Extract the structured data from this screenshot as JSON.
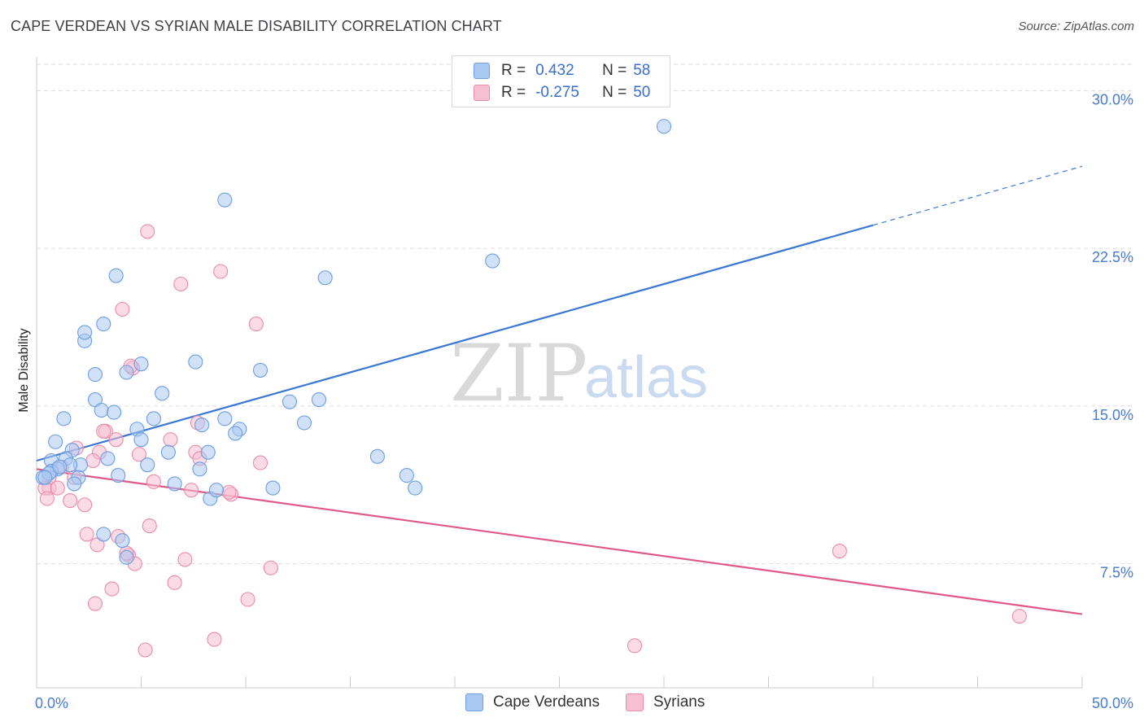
{
  "header": {
    "title": "CAPE VERDEAN VS SYRIAN MALE DISABILITY CORRELATION CHART",
    "source": "Source: ZipAtlas.com"
  },
  "watermark": {
    "zip": "ZIP",
    "atlas": "atlas"
  },
  "legend": {
    "rows": [
      {
        "r_label": "R =",
        "r_value": "0.432",
        "n_label": "N =",
        "n_value": "58",
        "color": "#a9c8f2",
        "border": "#6e9fe0"
      },
      {
        "r_label": "R =",
        "r_value": "-0.275",
        "n_label": "N =",
        "n_value": "50",
        "color": "#f7bfd2",
        "border": "#e98bab"
      }
    ]
  },
  "bottom_legend": {
    "blue": "Cape Verdeans",
    "pink": "Syrians"
  },
  "chart_data": {
    "type": "scatter",
    "title": "CAPE VERDEAN VS SYRIAN MALE DISABILITY CORRELATION CHART",
    "xlabel": "",
    "ylabel": "Male Disability",
    "xlim": [
      0,
      50
    ],
    "ylim": [
      1.6,
      31.6
    ],
    "x_tick_labels": [
      {
        "value": 0,
        "label": "0.0%"
      },
      {
        "value": 50,
        "label": "50.0%"
      }
    ],
    "y_tick_labels": [
      {
        "value": 7.5,
        "label": "7.5%"
      },
      {
        "value": 15.0,
        "label": "15.0%"
      },
      {
        "value": 22.5,
        "label": "22.5%"
      },
      {
        "value": 30.0,
        "label": "30.0%"
      }
    ],
    "x_minor_ticks": [
      5,
      10,
      15,
      20,
      25,
      30,
      35,
      40,
      45,
      50
    ],
    "colors": {
      "blue_fill": "#a9c8f2",
      "blue_edge": "#6e9fe0",
      "blue_line": "#3a78d4",
      "pink_fill": "#f7bfd2",
      "pink_edge": "#e98bab",
      "pink_line": "#e0588a",
      "grid": "#dddddd",
      "axis": "#cccccc"
    },
    "series": [
      {
        "name": "Cape Verdeans",
        "color": "#a9c8f2",
        "points": [
          [
            30.0,
            28.3
          ],
          [
            9.0,
            24.8
          ],
          [
            21.8,
            21.9
          ],
          [
            3.8,
            21.2
          ],
          [
            13.8,
            21.1
          ],
          [
            3.2,
            18.9
          ],
          [
            2.3,
            18.1
          ],
          [
            2.3,
            18.5
          ],
          [
            5.0,
            17.0
          ],
          [
            7.6,
            17.1
          ],
          [
            4.3,
            16.6
          ],
          [
            2.8,
            16.5
          ],
          [
            10.7,
            16.7
          ],
          [
            6.0,
            15.6
          ],
          [
            2.8,
            15.3
          ],
          [
            12.1,
            15.2
          ],
          [
            13.5,
            15.3
          ],
          [
            3.1,
            14.8
          ],
          [
            3.7,
            14.7
          ],
          [
            1.3,
            14.4
          ],
          [
            5.6,
            14.4
          ],
          [
            9.0,
            14.4
          ],
          [
            7.9,
            14.1
          ],
          [
            4.8,
            13.9
          ],
          [
            9.7,
            13.9
          ],
          [
            9.5,
            13.7
          ],
          [
            12.8,
            14.2
          ],
          [
            0.9,
            13.3
          ],
          [
            5.0,
            13.4
          ],
          [
            1.7,
            12.9
          ],
          [
            6.3,
            12.8
          ],
          [
            8.2,
            12.8
          ],
          [
            1.4,
            12.5
          ],
          [
            0.7,
            12.4
          ],
          [
            3.4,
            12.5
          ],
          [
            2.1,
            12.2
          ],
          [
            1.6,
            12.2
          ],
          [
            5.3,
            12.2
          ],
          [
            7.8,
            12.0
          ],
          [
            1.0,
            12.0
          ],
          [
            0.7,
            11.9
          ],
          [
            0.3,
            11.6
          ],
          [
            0.6,
            11.8
          ],
          [
            2.0,
            11.6
          ],
          [
            1.8,
            11.3
          ],
          [
            3.9,
            11.7
          ],
          [
            6.6,
            11.3
          ],
          [
            16.3,
            12.6
          ],
          [
            17.7,
            11.7
          ],
          [
            18.1,
            11.1
          ],
          [
            8.3,
            10.6
          ],
          [
            8.6,
            11.0
          ],
          [
            11.3,
            11.1
          ],
          [
            3.2,
            8.9
          ],
          [
            4.1,
            8.6
          ],
          [
            4.3,
            7.8
          ],
          [
            0.4,
            11.6
          ],
          [
            1.1,
            12.1
          ]
        ]
      },
      {
        "name": "Syrians",
        "color": "#f7bfd2",
        "points": [
          [
            5.3,
            23.3
          ],
          [
            6.9,
            20.8
          ],
          [
            8.8,
            21.4
          ],
          [
            4.1,
            19.6
          ],
          [
            10.5,
            18.9
          ],
          [
            4.6,
            16.8
          ],
          [
            4.5,
            16.9
          ],
          [
            7.7,
            14.2
          ],
          [
            6.4,
            13.4
          ],
          [
            3.3,
            13.8
          ],
          [
            3.2,
            13.8
          ],
          [
            3.8,
            13.4
          ],
          [
            1.9,
            13.0
          ],
          [
            3.0,
            12.8
          ],
          [
            4.9,
            12.7
          ],
          [
            7.6,
            12.8
          ],
          [
            7.8,
            12.5
          ],
          [
            10.7,
            12.3
          ],
          [
            2.7,
            12.4
          ],
          [
            1.2,
            12.1
          ],
          [
            1.8,
            11.6
          ],
          [
            0.6,
            11.1
          ],
          [
            0.6,
            11.6
          ],
          [
            0.4,
            11.1
          ],
          [
            1.0,
            11.1
          ],
          [
            5.6,
            11.4
          ],
          [
            7.4,
            11.0
          ],
          [
            9.3,
            10.8
          ],
          [
            9.2,
            10.9
          ],
          [
            0.5,
            10.6
          ],
          [
            1.6,
            10.5
          ],
          [
            2.3,
            10.3
          ],
          [
            5.4,
            9.3
          ],
          [
            2.4,
            8.9
          ],
          [
            2.9,
            8.4
          ],
          [
            3.9,
            8.8
          ],
          [
            4.4,
            7.9
          ],
          [
            4.7,
            7.5
          ],
          [
            7.1,
            7.7
          ],
          [
            11.2,
            7.3
          ],
          [
            3.6,
            6.3
          ],
          [
            6.6,
            6.6
          ],
          [
            10.1,
            5.8
          ],
          [
            2.8,
            5.6
          ],
          [
            8.5,
            3.9
          ],
          [
            5.2,
            3.4
          ],
          [
            28.6,
            3.6
          ],
          [
            38.4,
            8.1
          ],
          [
            47.0,
            5.0
          ],
          [
            4.3,
            8.0
          ]
        ]
      }
    ],
    "trend_lines": [
      {
        "name": "Cape Verdeans",
        "x0": 0,
        "y0": 12.4,
        "x1_solid": 40,
        "y1_solid": 23.6,
        "x1_dashed": 50,
        "y1_dashed": 26.4
      },
      {
        "name": "Syrians",
        "x0": 0,
        "y0": 12.0,
        "x1": 50,
        "y1": 5.1
      }
    ]
  }
}
